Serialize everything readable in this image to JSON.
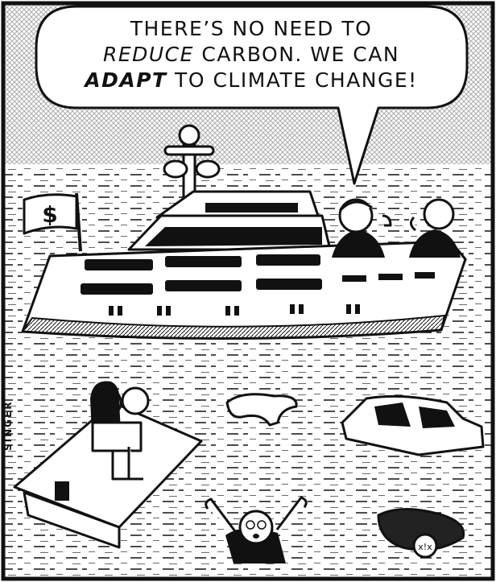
{
  "speech_bubble": {
    "lines": [
      [
        "THERE’S NO NEED TO"
      ],
      [
        "REDUCE",
        " CARBON. WE CAN"
      ],
      [
        "ADAPT",
        " TO CLIMATE CHANGE!"
      ]
    ]
  },
  "flag": {
    "symbol": "$"
  },
  "signature": "SINGER",
  "sign": "x!x"
}
